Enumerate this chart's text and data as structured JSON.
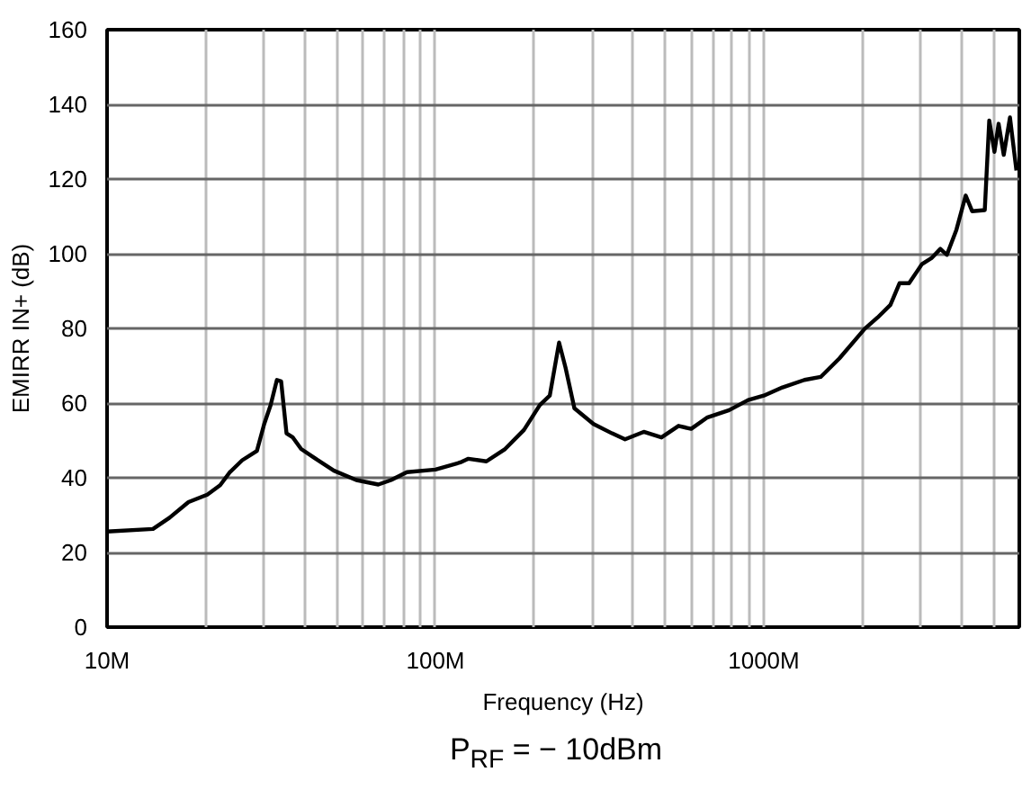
{
  "chart_data": {
    "type": "line",
    "xlabel": "Frequency (Hz)",
    "ylabel": "EMIRR IN+ (dB)",
    "annotations": [
      "P$_{RF}$ = − 10dBm"
    ],
    "log": "x",
    "grid": true,
    "marker": "none",
    "line_style": "solid",
    "xlim": [
      10000000,
      6000000000
    ],
    "xticks": [
      {
        "value": 10000000,
        "label": "10M"
      },
      {
        "value": 20000000,
        "label": null
      },
      {
        "value": 30000000,
        "label": null
      },
      {
        "value": 40000000,
        "label": null
      },
      {
        "value": 50000000,
        "label": null
      },
      {
        "value": 60000000,
        "label": null
      },
      {
        "value": 70000000,
        "label": null
      },
      {
        "value": 80000000,
        "label": null
      },
      {
        "value": 90000000,
        "label": null
      },
      {
        "value": 100000000,
        "label": "100M"
      },
      {
        "value": 200000000,
        "label": null
      },
      {
        "value": 300000000,
        "label": null
      },
      {
        "value": 400000000,
        "label": null
      },
      {
        "value": 500000000,
        "label": null
      },
      {
        "value": 600000000,
        "label": null
      },
      {
        "value": 700000000,
        "label": null
      },
      {
        "value": 800000000,
        "label": null
      },
      {
        "value": 900000000,
        "label": null
      },
      {
        "value": 1000000000,
        "label": "1000M"
      },
      {
        "value": 2000000000,
        "label": null
      },
      {
        "value": 3000000000,
        "label": null
      },
      {
        "value": 4000000000,
        "label": null
      },
      {
        "value": 5000000000,
        "label": null
      }
    ],
    "ylim": [
      0,
      160
    ],
    "yticks": [
      0,
      20,
      40,
      60,
      80,
      100,
      120,
      140,
      160
    ],
    "series": [
      {
        "color": "#000000",
        "x": [
          10000000,
          13800000,
          15500000,
          17700000,
          20200000,
          22100000,
          23600000,
          25800000,
          28600000,
          30100000,
          31500000,
          32900000,
          33900000,
          35200000,
          36800000,
          39000000,
          43000000,
          49100000,
          57400000,
          67000000,
          73300000,
          81900000,
          100000000,
          119000000,
          126000000,
          143000000,
          163000000,
          186000000,
          208000000,
          223000000,
          238000000,
          249000000,
          265000000,
          303000000,
          345000000,
          378000000,
          431000000,
          488000000,
          550000000,
          601000000,
          671000000,
          784000000,
          896000000,
          1000000000,
          1140000000,
          1330000000,
          1490000000,
          1700000000,
          2030000000,
          2220000000,
          2430000000,
          2590000000,
          2770000000,
          3030000000,
          3240000000,
          3450000000,
          3610000000,
          3860000000,
          4120000000,
          4310000000,
          4710000000,
          4860000000,
          5040000000,
          5190000000,
          5380000000,
          5620000000,
          5880000000
        ],
        "values": [
          25.6,
          26.3,
          29.3,
          33.5,
          35.5,
          38,
          41.4,
          44.7,
          47.2,
          54.4,
          59.5,
          66.2,
          65.8,
          51.9,
          50.8,
          47.7,
          45.2,
          41.9,
          39.4,
          38.2,
          39.4,
          41.5,
          42.2,
          44.1,
          45.1,
          44.4,
          47.7,
          52.8,
          59.5,
          62,
          76.2,
          69.5,
          58.6,
          54.4,
          51.9,
          50.3,
          52.3,
          50.8,
          53.9,
          53.1,
          56.1,
          58.1,
          60.8,
          62,
          64.2,
          66.2,
          67,
          72,
          79.9,
          82.9,
          86.3,
          92.1,
          92.1,
          97.2,
          98.8,
          101.3,
          99.7,
          106.4,
          115.6,
          111.4,
          111.7,
          135.7,
          127.3,
          134.8,
          126.5,
          136.5,
          122.3
        ]
      }
    ]
  }
}
